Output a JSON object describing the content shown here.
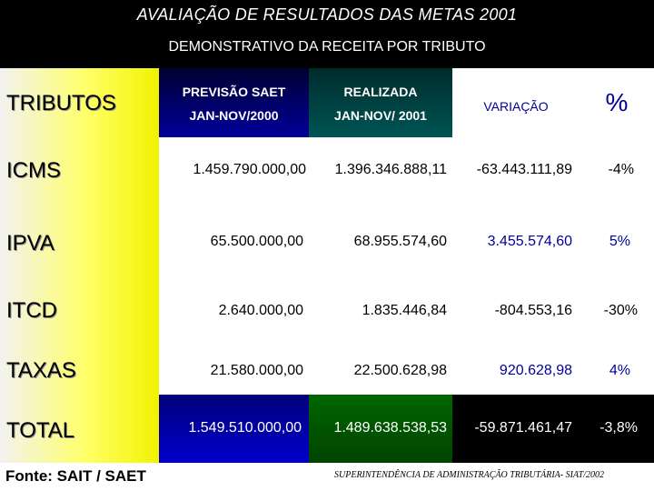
{
  "title": "AVALIAÇÃO DE  RESULTADOS DAS METAS 2001",
  "subtitle": "DEMONSTRATIVO DA RECEITA POR TRIBUTO",
  "headers": {
    "tributos": "TRIBUTOS",
    "previsao_1": "PREVISÃO SAET",
    "previsao_2": "JAN-NOV/2000",
    "realizada_1": "REALIZADA",
    "realizada_2": "JAN-NOV/ 2001",
    "variacao": "VARIAÇÃO",
    "pct": "%"
  },
  "rows": [
    {
      "tributo": "ICMS",
      "previsao": "1.459.790.000,00",
      "realizada": "1.396.346.888,11",
      "variacao": "-63.443.111,89",
      "pct": "-4%"
    },
    {
      "tributo": "IPVA",
      "previsao": "65.500.000,00",
      "realizada": "68.955.574,60",
      "variacao": "3.455.574,60",
      "pct": "5%"
    },
    {
      "tributo": "ITCD",
      "previsao": "2.640.000,00",
      "realizada": "1.835.446,84",
      "variacao": "-804.553,16",
      "pct": "-30%"
    },
    {
      "tributo": "TAXAS",
      "previsao": "21.580.000,00",
      "realizada": "22.500.628,98",
      "variacao": "920.628,98",
      "pct": "4%"
    },
    {
      "tributo": "TOTAL",
      "previsao": "1.549.510.000,00",
      "realizada": "1.489.638.538,53",
      "variacao": "-59.871.461,47",
      "pct": "-3,8%"
    }
  ],
  "footer": {
    "source": "Fonte:  SAIT  / SAET",
    "agency": "SUPERINTENDÊNCIA DE ADMINISTRAÇÃO TRIBUTÁRIA- SIAT/2002"
  },
  "colors": {
    "header_bar": "#000000",
    "previsao_header": "#000099",
    "realizada_header": "#005555",
    "total_previsao": "#0000cc",
    "total_realizada": "#006600",
    "tributos_column": "#ffff66",
    "positive_text": "#000099"
  }
}
